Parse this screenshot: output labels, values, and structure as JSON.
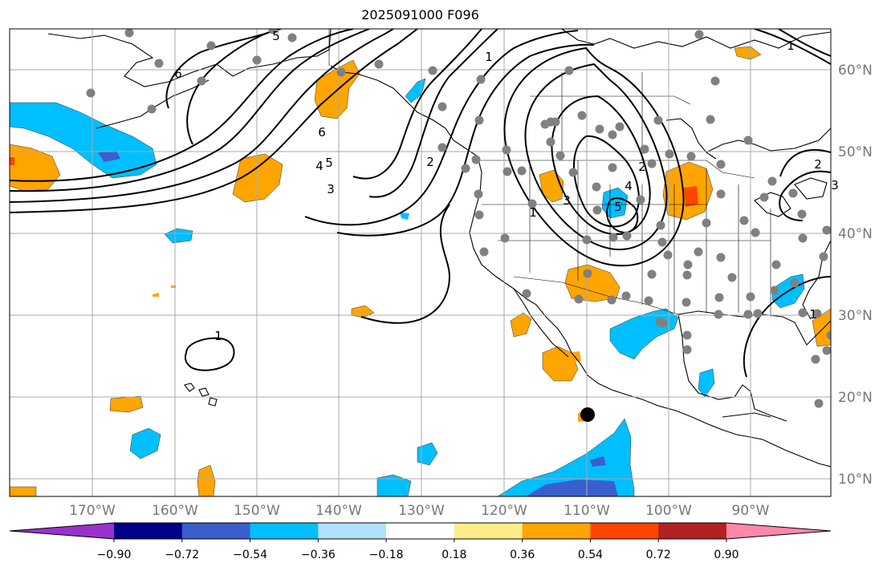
{
  "title": "2025091000 F096",
  "colors": {
    "ocean": "#ffffff",
    "coast": "#000000",
    "grid": "#aaaaaa",
    "stations": "#808080",
    "marker": "#000000"
  },
  "lon_labels": [
    "170°W",
    "160°W",
    "150°W",
    "140°W",
    "130°W",
    "120°W",
    "110°W",
    "100°W",
    "90°W"
  ],
  "lat_labels": [
    "60°N",
    "50°N",
    "40°N",
    "30°N",
    "20°N",
    "10°N"
  ],
  "colorbar": {
    "colors": [
      "#9932cc",
      "#00008b",
      "#3a5fcd",
      "#00bfff",
      "#b0e2ff",
      "#ffffff",
      "#ffec8b",
      "#ffa500",
      "#ff4500",
      "#b22222",
      "#ff88aa"
    ],
    "ticks": [
      "−0.90",
      "−0.72",
      "−0.54",
      "−0.36",
      "−0.18",
      "0.18",
      "0.36",
      "0.54",
      "0.72",
      "0.90"
    ]
  },
  "contour_labels": [
    "6",
    "6",
    "5",
    "4",
    "5",
    "3",
    "2",
    "1",
    "1",
    "2",
    "3",
    "4",
    "5",
    "1",
    "1",
    "2",
    "3",
    "1"
  ],
  "icons": {
    "marker": "filled-circle-marker",
    "station": "station-dot"
  }
}
